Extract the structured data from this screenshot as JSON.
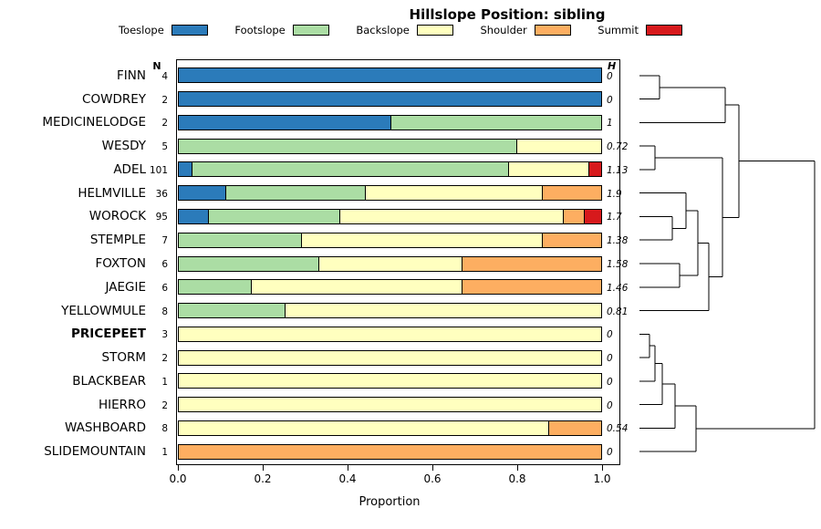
{
  "title": "Hillslope Position: sibling",
  "xlabel": "Proportion",
  "columns": {
    "n_header": "N",
    "h_header": "H"
  },
  "legend": [
    {
      "label": "Toeslope",
      "color": "#2B7BBA"
    },
    {
      "label": "Footslope",
      "color": "#ABDDA4"
    },
    {
      "label": "Backslope",
      "color": "#FFFFBF"
    },
    {
      "label": "Shoulder",
      "color": "#FDAE61"
    },
    {
      "label": "Summit",
      "color": "#D7191C"
    }
  ],
  "chart_data": {
    "type": "bar",
    "orientation": "horizontal",
    "stacked": true,
    "title": "Hillslope Position: sibling",
    "xlabel": "Proportion",
    "xlim": [
      0,
      1
    ],
    "categories": [
      "Toeslope",
      "Footslope",
      "Backslope",
      "Shoulder",
      "Summit"
    ],
    "colors": {
      "Toeslope": "#2B7BBA",
      "Footslope": "#ABDDA4",
      "Backslope": "#FFFFBF",
      "Shoulder": "#FDAE61",
      "Summit": "#D7191C"
    },
    "x_ticks": [
      {
        "label": "0.0",
        "value": 0.0
      },
      {
        "label": "0.2",
        "value": 0.2
      },
      {
        "label": "0.4",
        "value": 0.4
      },
      {
        "label": "0.6",
        "value": 0.6
      },
      {
        "label": "0.8",
        "value": 0.8
      },
      {
        "label": "1.0",
        "value": 1.0
      }
    ],
    "rows": [
      {
        "name": "FINN",
        "n": "4",
        "h": "0",
        "bold": false,
        "values": [
          1,
          0,
          0,
          0,
          0
        ]
      },
      {
        "name": "COWDREY",
        "n": "2",
        "h": "0",
        "bold": false,
        "values": [
          1,
          0,
          0,
          0,
          0
        ]
      },
      {
        "name": "MEDICINELODGE",
        "n": "2",
        "h": "1",
        "bold": false,
        "values": [
          0.5,
          0.5,
          0,
          0,
          0
        ]
      },
      {
        "name": "WESDY",
        "n": "5",
        "h": "0.72",
        "bold": false,
        "values": [
          0,
          0.8,
          0.2,
          0,
          0
        ]
      },
      {
        "name": "ADEL",
        "n": "101",
        "h": "1.13",
        "bold": false,
        "values": [
          0.03,
          0.75,
          0.19,
          0,
          0.03
        ]
      },
      {
        "name": "HELMVILLE",
        "n": "36",
        "h": "1.9",
        "bold": false,
        "values": [
          0.11,
          0.33,
          0.42,
          0.14,
          0
        ]
      },
      {
        "name": "WOROCK",
        "n": "95",
        "h": "1.7",
        "bold": false,
        "values": [
          0.07,
          0.31,
          0.53,
          0.05,
          0.04
        ]
      },
      {
        "name": "STEMPLE",
        "n": "7",
        "h": "1.38",
        "bold": false,
        "values": [
          0,
          0.29,
          0.57,
          0.14,
          0
        ]
      },
      {
        "name": "FOXTON",
        "n": "6",
        "h": "1.58",
        "bold": false,
        "values": [
          0,
          0.33,
          0.34,
          0.33,
          0
        ]
      },
      {
        "name": "JAEGIE",
        "n": "6",
        "h": "1.46",
        "bold": false,
        "values": [
          0,
          0.17,
          0.5,
          0.33,
          0
        ]
      },
      {
        "name": "YELLOWMULE",
        "n": "8",
        "h": "0.81",
        "bold": false,
        "values": [
          0,
          0.25,
          0.75,
          0,
          0
        ]
      },
      {
        "name": "PRICEPEET",
        "n": "3",
        "h": "0",
        "bold": true,
        "values": [
          0,
          0,
          1,
          0,
          0
        ]
      },
      {
        "name": "STORM",
        "n": "2",
        "h": "0",
        "bold": false,
        "values": [
          0,
          0,
          1,
          0,
          0
        ]
      },
      {
        "name": "BLACKBEAR",
        "n": "1",
        "h": "0",
        "bold": false,
        "values": [
          0,
          0,
          1,
          0,
          0
        ]
      },
      {
        "name": "HIERRO",
        "n": "2",
        "h": "0",
        "bold": false,
        "values": [
          0,
          0,
          1,
          0,
          0
        ]
      },
      {
        "name": "WASHBOARD",
        "n": "8",
        "h": "0.54",
        "bold": false,
        "values": [
          0,
          0,
          0.875,
          0.125,
          0
        ]
      },
      {
        "name": "SLIDEMOUNTAIN",
        "n": "1",
        "h": "0",
        "bold": false,
        "values": [
          0,
          0,
          0,
          1,
          0
        ]
      }
    ]
  },
  "dendrogram": {
    "note": "right-side hierarchical clustering of series, leaves ordered top to bottom",
    "merges": [
      [
        "L0",
        "L1",
        28
      ],
      [
        "M1",
        "L2",
        100
      ],
      [
        "L3",
        "L4",
        23
      ],
      [
        "L6",
        "L7",
        42
      ],
      [
        "L5",
        "M4",
        57
      ],
      [
        "L8",
        "L9",
        50
      ],
      [
        "M5",
        "M6",
        70
      ],
      [
        "M7",
        "L10",
        82
      ],
      [
        "M3",
        "M8",
        97
      ],
      [
        "M2",
        "M9",
        115
      ],
      [
        "L11",
        "L12",
        17
      ],
      [
        "M11",
        "L13",
        23
      ],
      [
        "M12",
        "L14",
        31
      ],
      [
        "M13",
        "L15",
        45
      ],
      [
        "M14",
        "L16",
        68
      ],
      [
        "M10",
        "M15",
        198
      ]
    ]
  }
}
